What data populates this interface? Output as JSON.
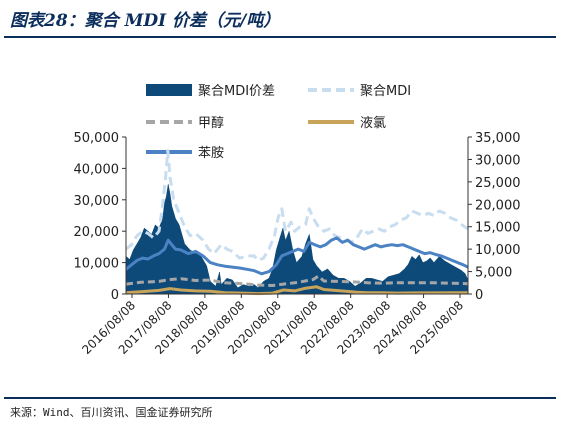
{
  "header": {
    "title": "图表28：聚合 MDI 价差（元/吨）"
  },
  "footer": {
    "source": "来源：Wind、百川资讯、国金证券研究所"
  },
  "chart_data": {
    "type": "area",
    "title": "",
    "x_tick_labels": [
      "2016/08/08",
      "2017/08/08",
      "2018/08/08",
      "2019/08/08",
      "2020/08/08",
      "2021/08/08",
      "2022/08/08",
      "2023/08/08",
      "2024/08/08",
      "2025/08/08"
    ],
    "y_left": {
      "ticks": [
        "0",
        "10,000",
        "20,000",
        "30,000",
        "40,000",
        "50,000"
      ],
      "range": [
        0,
        50000
      ]
    },
    "y_right": {
      "ticks": [
        "0",
        "5,000",
        "10,000",
        "15,000",
        "20,000",
        "25,000",
        "30,000",
        "35,000"
      ],
      "range": [
        0,
        35000
      ]
    },
    "x_range": [
      2016.6,
      2025.93
    ],
    "legend_position": "top",
    "colors": {
      "spread": "#0d4a7a",
      "mdi": "#c9ddf0",
      "methanol": "#a6a6a6",
      "chlorine": "#c8a35a",
      "aniline": "#4a82c4"
    },
    "series": [
      {
        "name": "聚合MDI价差",
        "style": "area",
        "axis": "left",
        "points": [
          [
            2016.6,
            12000
          ],
          [
            2016.7,
            11000
          ],
          [
            2016.8,
            14000
          ],
          [
            2016.9,
            16000
          ],
          [
            2017.0,
            18000
          ],
          [
            2017.1,
            21000
          ],
          [
            2017.2,
            20000
          ],
          [
            2017.3,
            19000
          ],
          [
            2017.4,
            22000
          ],
          [
            2017.5,
            21000
          ],
          [
            2017.6,
            24000
          ],
          [
            2017.65,
            29000
          ],
          [
            2017.7,
            31000
          ],
          [
            2017.75,
            35000
          ],
          [
            2017.8,
            32000
          ],
          [
            2017.85,
            28000
          ],
          [
            2017.95,
            24000
          ],
          [
            2018.05,
            22000
          ],
          [
            2018.2,
            16000
          ],
          [
            2018.35,
            14000
          ],
          [
            2018.5,
            13000
          ],
          [
            2018.65,
            12000
          ],
          [
            2018.8,
            9000
          ],
          [
            2018.9,
            4000
          ],
          [
            2019.05,
            2500
          ],
          [
            2019.15,
            7000
          ],
          [
            2019.2,
            3000
          ],
          [
            2019.35,
            5000
          ],
          [
            2019.5,
            4500
          ],
          [
            2019.65,
            2000
          ],
          [
            2019.8,
            3000
          ],
          [
            2019.95,
            2500
          ],
          [
            2020.1,
            3000
          ],
          [
            2020.2,
            2000
          ],
          [
            2020.35,
            4000
          ],
          [
            2020.5,
            5000
          ],
          [
            2020.6,
            8000
          ],
          [
            2020.7,
            14000
          ],
          [
            2020.8,
            18000
          ],
          [
            2020.88,
            21000
          ],
          [
            2020.95,
            17000
          ],
          [
            2021.05,
            20000
          ],
          [
            2021.15,
            14000
          ],
          [
            2021.25,
            10000
          ],
          [
            2021.4,
            12000
          ],
          [
            2021.5,
            16000
          ],
          [
            2021.6,
            19000
          ],
          [
            2021.7,
            11000
          ],
          [
            2021.8,
            9000
          ],
          [
            2021.95,
            7000
          ],
          [
            2022.1,
            8000
          ],
          [
            2022.25,
            6000
          ],
          [
            2022.4,
            5000
          ],
          [
            2022.55,
            5000
          ],
          [
            2022.7,
            4000
          ],
          [
            2022.85,
            2500
          ],
          [
            2023.0,
            3500
          ],
          [
            2023.15,
            5000
          ],
          [
            2023.3,
            5000
          ],
          [
            2023.45,
            4500
          ],
          [
            2023.6,
            4000
          ],
          [
            2023.75,
            5500
          ],
          [
            2023.9,
            6000
          ],
          [
            2024.05,
            6500
          ],
          [
            2024.2,
            8000
          ],
          [
            2024.3,
            9500
          ],
          [
            2024.4,
            12000
          ],
          [
            2024.5,
            11000
          ],
          [
            2024.6,
            12500
          ],
          [
            2024.7,
            10000
          ],
          [
            2024.8,
            10500
          ],
          [
            2024.9,
            11500
          ],
          [
            2025.0,
            10000
          ],
          [
            2025.15,
            12000
          ],
          [
            2025.3,
            10500
          ],
          [
            2025.45,
            9500
          ],
          [
            2025.6,
            8500
          ],
          [
            2025.75,
            7500
          ],
          [
            2025.85,
            6500
          ],
          [
            2025.93,
            4500
          ]
        ]
      },
      {
        "name": "聚合MDI",
        "style": "dashed",
        "axis": "right",
        "points": [
          [
            2016.6,
            10000
          ],
          [
            2016.75,
            11000
          ],
          [
            2016.9,
            13000
          ],
          [
            2017.05,
            14000
          ],
          [
            2017.2,
            13500
          ],
          [
            2017.35,
            12500
          ],
          [
            2017.5,
            14000
          ],
          [
            2017.6,
            20000
          ],
          [
            2017.68,
            26000
          ],
          [
            2017.74,
            32000
          ],
          [
            2017.8,
            26000
          ],
          [
            2017.9,
            21000
          ],
          [
            2018.05,
            18000
          ],
          [
            2018.2,
            15000
          ],
          [
            2018.35,
            13000
          ],
          [
            2018.5,
            13500
          ],
          [
            2018.7,
            12000
          ],
          [
            2018.85,
            10000
          ],
          [
            2019.0,
            9000
          ],
          [
            2019.2,
            11000
          ],
          [
            2019.35,
            10000
          ],
          [
            2019.5,
            9500
          ],
          [
            2019.7,
            8000
          ],
          [
            2019.9,
            8500
          ],
          [
            2020.1,
            8500
          ],
          [
            2020.2,
            7500
          ],
          [
            2020.35,
            8000
          ],
          [
            2020.5,
            10000
          ],
          [
            2020.65,
            13000
          ],
          [
            2020.75,
            17000
          ],
          [
            2020.85,
            19000
          ],
          [
            2020.95,
            14000
          ],
          [
            2021.1,
            16000
          ],
          [
            2021.2,
            14000
          ],
          [
            2021.35,
            15000
          ],
          [
            2021.5,
            15500
          ],
          [
            2021.6,
            19000
          ],
          [
            2021.7,
            17000
          ],
          [
            2021.85,
            15000
          ],
          [
            2022.0,
            14000
          ],
          [
            2022.15,
            14500
          ],
          [
            2022.3,
            13000
          ],
          [
            2022.45,
            12500
          ],
          [
            2022.6,
            12000
          ],
          [
            2022.75,
            11500
          ],
          [
            2022.9,
            12500
          ],
          [
            2023.05,
            14500
          ],
          [
            2023.2,
            13500
          ],
          [
            2023.35,
            14000
          ],
          [
            2023.5,
            14500
          ],
          [
            2023.65,
            14000
          ],
          [
            2023.8,
            15000
          ],
          [
            2023.95,
            15500
          ],
          [
            2024.1,
            16500
          ],
          [
            2024.25,
            17000
          ],
          [
            2024.4,
            18500
          ],
          [
            2024.55,
            18000
          ],
          [
            2024.7,
            17500
          ],
          [
            2024.85,
            18000
          ],
          [
            2025.0,
            17500
          ],
          [
            2025.15,
            18500
          ],
          [
            2025.3,
            18000
          ],
          [
            2025.45,
            17000
          ],
          [
            2025.6,
            16500
          ],
          [
            2025.75,
            15500
          ],
          [
            2025.93,
            14500
          ]
        ]
      },
      {
        "name": "甲醇",
        "style": "dashed",
        "axis": "right",
        "points": [
          [
            2016.6,
            2200
          ],
          [
            2017.0,
            2600
          ],
          [
            2017.5,
            2800
          ],
          [
            2017.8,
            3200
          ],
          [
            2018.1,
            3400
          ],
          [
            2018.5,
            3000
          ],
          [
            2018.9,
            3100
          ],
          [
            2019.3,
            2500
          ],
          [
            2019.8,
            2300
          ],
          [
            2020.2,
            2000
          ],
          [
            2020.6,
            1900
          ],
          [
            2020.9,
            2200
          ],
          [
            2021.3,
            2600
          ],
          [
            2021.7,
            3200
          ],
          [
            2021.85,
            4000
          ],
          [
            2022.0,
            2900
          ],
          [
            2022.4,
            2800
          ],
          [
            2022.8,
            2700
          ],
          [
            2023.2,
            2500
          ],
          [
            2023.6,
            2400
          ],
          [
            2024.0,
            2500
          ],
          [
            2024.5,
            2500
          ],
          [
            2025.0,
            2500
          ],
          [
            2025.5,
            2400
          ],
          [
            2025.93,
            2300
          ]
        ]
      },
      {
        "name": "液氯",
        "style": "line",
        "axis": "right",
        "points": [
          [
            2016.6,
            300
          ],
          [
            2017.0,
            500
          ],
          [
            2017.5,
            800
          ],
          [
            2017.8,
            1200
          ],
          [
            2018.1,
            900
          ],
          [
            2018.5,
            700
          ],
          [
            2018.9,
            600
          ],
          [
            2019.3,
            300
          ],
          [
            2019.8,
            200
          ],
          [
            2020.2,
            100
          ],
          [
            2020.6,
            200
          ],
          [
            2020.9,
            900
          ],
          [
            2021.2,
            700
          ],
          [
            2021.5,
            1300
          ],
          [
            2021.8,
            1600
          ],
          [
            2022.0,
            1000
          ],
          [
            2022.3,
            800
          ],
          [
            2022.6,
            600
          ],
          [
            2022.9,
            400
          ],
          [
            2023.2,
            300
          ],
          [
            2023.6,
            300
          ],
          [
            2024.0,
            200
          ],
          [
            2024.5,
            250
          ],
          [
            2025.0,
            250
          ],
          [
            2025.5,
            300
          ],
          [
            2025.93,
            300
          ]
        ]
      },
      {
        "name": "苯胺",
        "style": "line",
        "axis": "right",
        "points": [
          [
            2016.6,
            5500
          ],
          [
            2016.75,
            6500
          ],
          [
            2016.9,
            7500
          ],
          [
            2017.05,
            8000
          ],
          [
            2017.2,
            7800
          ],
          [
            2017.35,
            8500
          ],
          [
            2017.5,
            9000
          ],
          [
            2017.65,
            10000
          ],
          [
            2017.75,
            12000
          ],
          [
            2017.85,
            11000
          ],
          [
            2017.95,
            10000
          ],
          [
            2018.1,
            9800
          ],
          [
            2018.3,
            9000
          ],
          [
            2018.5,
            9500
          ],
          [
            2018.7,
            8500
          ],
          [
            2018.9,
            7000
          ],
          [
            2019.1,
            6500
          ],
          [
            2019.3,
            6200
          ],
          [
            2019.5,
            6000
          ],
          [
            2019.7,
            5800
          ],
          [
            2019.9,
            5500
          ],
          [
            2020.1,
            5200
          ],
          [
            2020.3,
            4500
          ],
          [
            2020.5,
            5000
          ],
          [
            2020.7,
            6500
          ],
          [
            2020.85,
            8500
          ],
          [
            2021.0,
            9000
          ],
          [
            2021.15,
            9500
          ],
          [
            2021.3,
            10000
          ],
          [
            2021.45,
            9500
          ],
          [
            2021.6,
            11500
          ],
          [
            2021.75,
            11000
          ],
          [
            2021.9,
            10500
          ],
          [
            2022.05,
            11000
          ],
          [
            2022.2,
            12000
          ],
          [
            2022.35,
            12500
          ],
          [
            2022.5,
            11500
          ],
          [
            2022.65,
            12000
          ],
          [
            2022.8,
            11000
          ],
          [
            2022.95,
            10500
          ],
          [
            2023.1,
            10000
          ],
          [
            2023.25,
            10500
          ],
          [
            2023.4,
            11000
          ],
          [
            2023.55,
            10500
          ],
          [
            2023.7,
            10800
          ],
          [
            2023.85,
            11000
          ],
          [
            2024.0,
            10800
          ],
          [
            2024.15,
            11000
          ],
          [
            2024.3,
            10500
          ],
          [
            2024.45,
            10000
          ],
          [
            2024.6,
            9500
          ],
          [
            2024.75,
            9000
          ],
          [
            2024.9,
            9200
          ],
          [
            2025.05,
            8800
          ],
          [
            2025.2,
            8500
          ],
          [
            2025.35,
            8000
          ],
          [
            2025.5,
            7500
          ],
          [
            2025.65,
            7000
          ],
          [
            2025.8,
            6500
          ],
          [
            2025.93,
            6000
          ]
        ]
      }
    ]
  }
}
